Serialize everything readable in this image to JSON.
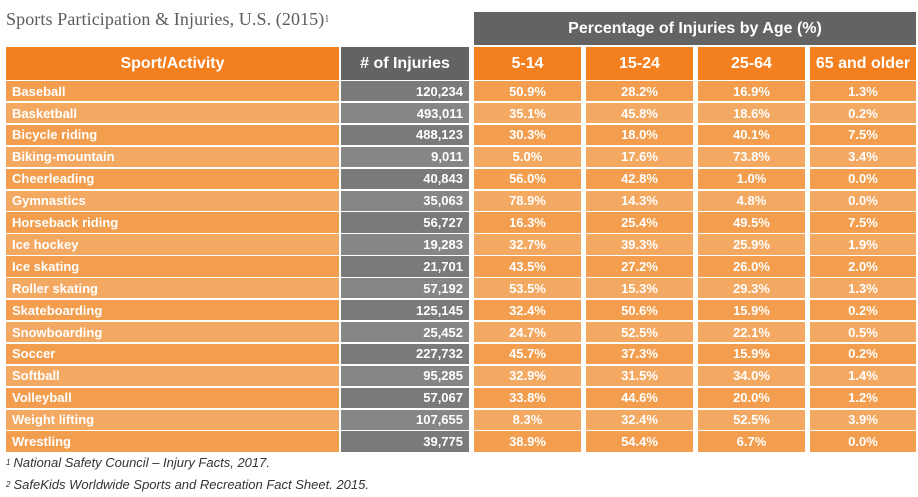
{
  "title": "Sports Participation & Injuries, U.S. (2015)",
  "title_sup": "1",
  "chart_data": {
    "type": "table",
    "group_header": "Percentage of Injuries by Age (%)",
    "columns": [
      "Sport/Activity",
      "# of Injuries",
      "5-14",
      "15-24",
      "25-64",
      "65 and older"
    ],
    "rows": [
      [
        "Baseball",
        "120,234",
        "50.9%",
        "28.2%",
        "16.9%",
        "1.3%"
      ],
      [
        "Basketball",
        "493,011",
        "35.1%",
        "45.8%",
        "18.6%",
        "0.2%"
      ],
      [
        "Bicycle riding",
        "488,123",
        "30.3%",
        "18.0%",
        "40.1%",
        "7.5%"
      ],
      [
        "Biking-mountain",
        "9,011",
        "5.0%",
        "17.6%",
        "73.8%",
        "3.4%"
      ],
      [
        "Cheerleading",
        "40,843",
        "56.0%",
        "42.8%",
        "1.0%",
        "0.0%"
      ],
      [
        "Gymnastics",
        "35,063",
        "78.9%",
        "14.3%",
        "4.8%",
        "0.0%"
      ],
      [
        "Horseback riding",
        "56,727",
        "16.3%",
        "25.4%",
        "49.5%",
        "7.5%"
      ],
      [
        "Ice hockey",
        "19,283",
        "32.7%",
        "39.3%",
        "25.9%",
        "1.9%"
      ],
      [
        "Ice skating",
        "21,701",
        "43.5%",
        "27.2%",
        "26.0%",
        "2.0%"
      ],
      [
        "Roller skating",
        "57,192",
        "53.5%",
        "15.3%",
        "29.3%",
        "1.3%"
      ],
      [
        "Skateboarding",
        "125,145",
        "32.4%",
        "50.6%",
        "15.9%",
        "0.2%"
      ],
      [
        "Snowboarding",
        "25,452",
        "24.7%",
        "52.5%",
        "22.1%",
        "0.5%"
      ],
      [
        "Soccer",
        "227,732",
        "45.7%",
        "37.3%",
        "15.9%",
        "0.2%"
      ],
      [
        "Softball",
        "95,285",
        "32.9%",
        "31.5%",
        "34.0%",
        "1.4%"
      ],
      [
        "Volleyball",
        "57,067",
        "33.8%",
        "44.6%",
        "20.0%",
        "1.2%"
      ],
      [
        "Weight lifting",
        "107,655",
        "8.3%",
        "32.4%",
        "52.5%",
        "3.9%"
      ],
      [
        "Wrestling",
        "39,775",
        "38.9%",
        "54.4%",
        "6.7%",
        "0.0%"
      ]
    ]
  },
  "footnotes": [
    {
      "mark": "1",
      "text": "National Safety Council – Injury Facts, 2017."
    },
    {
      "mark": "2",
      "text": "SafeKids Worldwide Sports and Recreation Fact Sheet. 2015."
    }
  ],
  "colors": {
    "header_orange": "#f47f1f",
    "row_orange_a": "#f39e4f",
    "row_orange_b": "#f4a962",
    "header_gray": "#636363",
    "row_gray_a": "#7a7a7a",
    "row_gray_b": "#868686",
    "title_gray": "#5c5c5c"
  }
}
